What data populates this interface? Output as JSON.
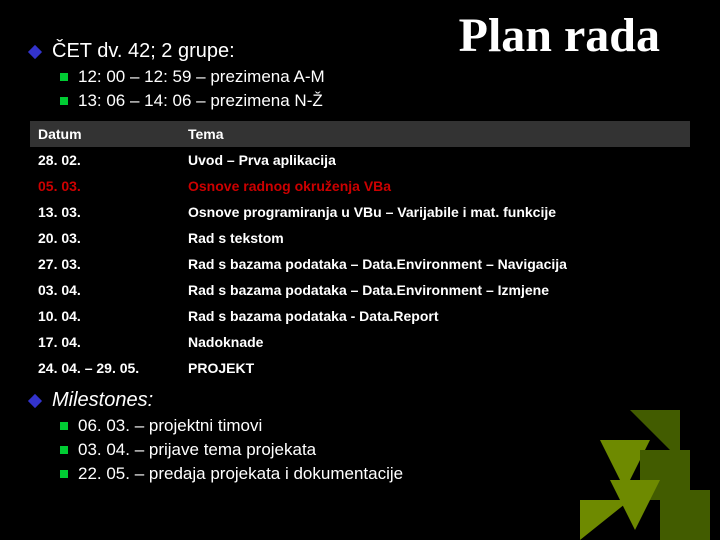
{
  "title": "Plan rada",
  "topBullet": "ČET dv. 42; 2 grupe:",
  "subBullets": [
    "12: 00 – 12: 59 – prezimena A-M",
    "13: 06 – 14: 06 – prezimena N-Ž"
  ],
  "table": {
    "headers": [
      "Datum",
      "Tema"
    ],
    "rows": [
      {
        "date": "28. 02.",
        "topic": "Uvod – Prva aplikacija",
        "highlight": false
      },
      {
        "date": "05. 03.",
        "topic": "Osnove radnog okruženja VBa",
        "highlight": true
      },
      {
        "date": "13. 03.",
        "topic": "Osnove programiranja u VBu – Varijabile i mat. funkcije",
        "highlight": false
      },
      {
        "date": "20. 03.",
        "topic": "Rad s tekstom",
        "highlight": false
      },
      {
        "date": "27. 03.",
        "topic": "Rad s bazama podataka – Data.Environment – Navigacija",
        "highlight": false
      },
      {
        "date": "03. 04.",
        "topic": "Rad s bazama podataka – Data.Environment – Izmjene",
        "highlight": false
      },
      {
        "date": "10. 04.",
        "topic": "Rad s bazama podataka - Data.Report",
        "highlight": false
      },
      {
        "date": "17. 04.",
        "topic": "Nadoknade",
        "highlight": false
      },
      {
        "date": "24. 04. – 29. 05.",
        "topic": "PROJEKT",
        "highlight": false
      }
    ]
  },
  "milestonesLabel": "Milestones:",
  "milestones": [
    "06. 03. – projektni timovi",
    "03. 04. – prijave tema projekata",
    "22. 05. – predaja projekata i dokumentacije"
  ],
  "colors": {
    "background": "#000000",
    "text": "#ffffff",
    "diamond": "#3333cc",
    "square": "#00cc33",
    "highlight": "#cc0000",
    "headerBg": "#333333",
    "decoDark": "#4a6600",
    "decoLight": "#7a9900"
  }
}
